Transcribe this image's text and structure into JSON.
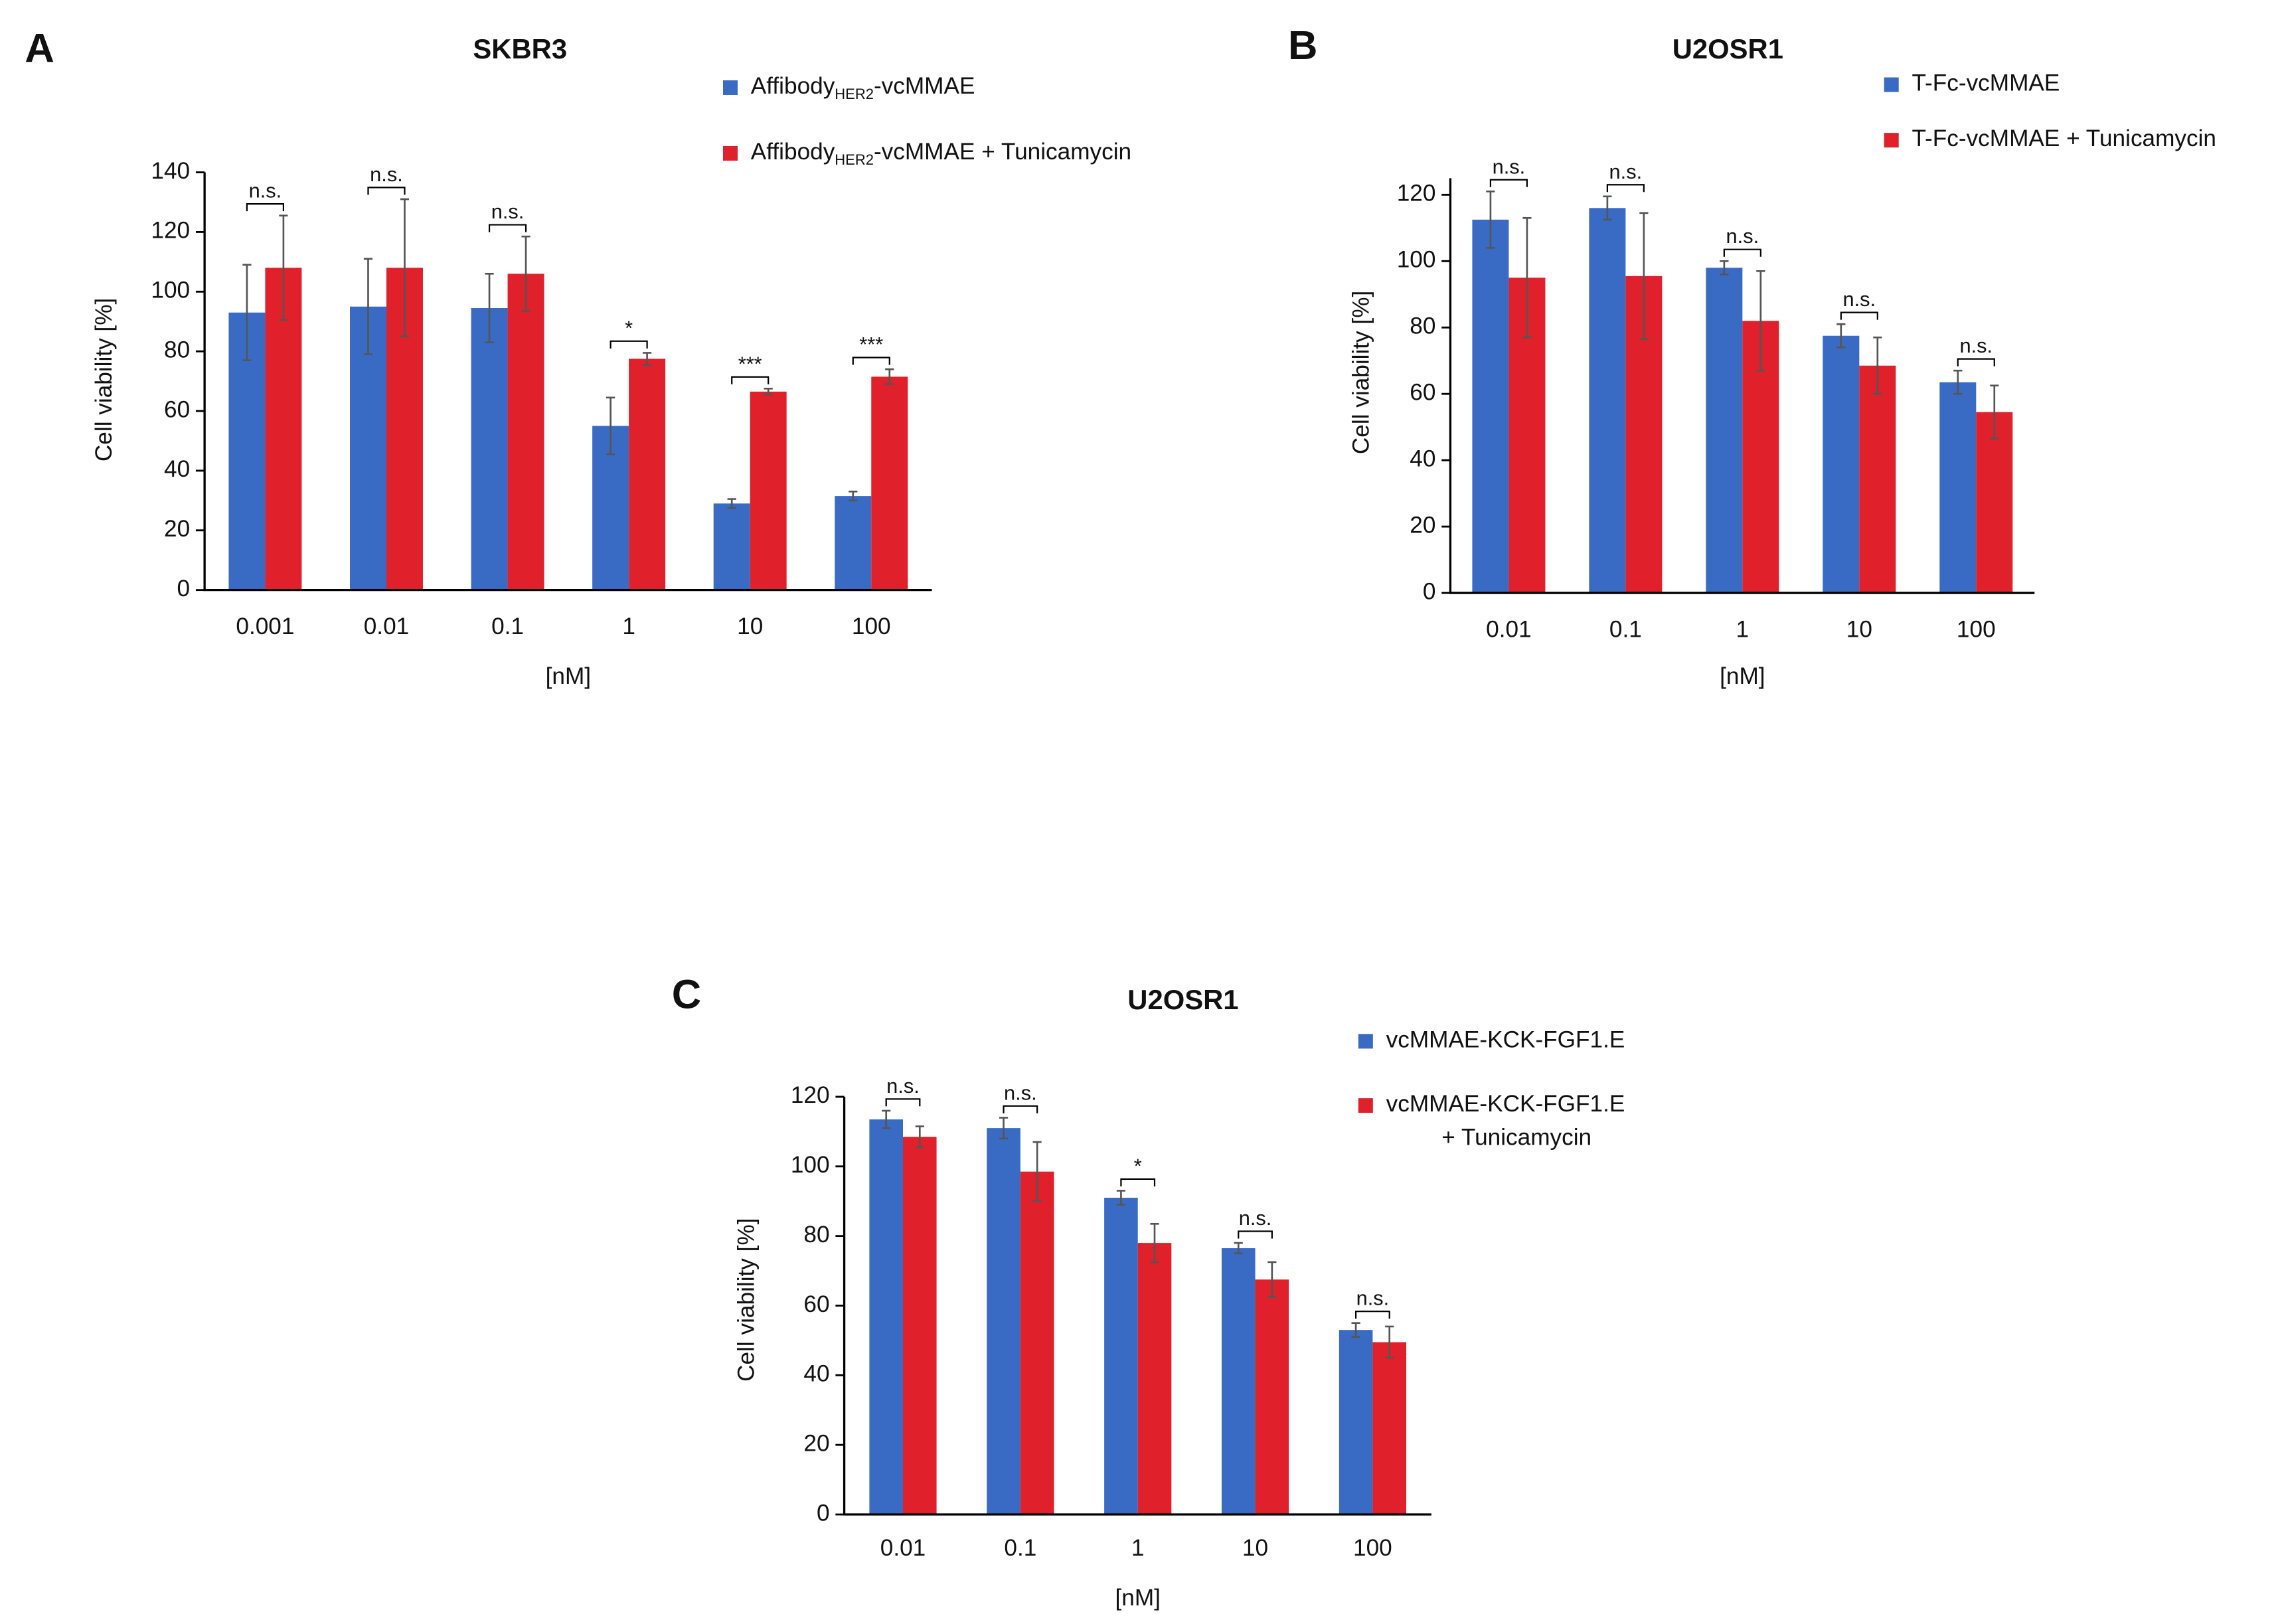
{
  "chart_data": [
    {
      "type": "bar",
      "label": "A",
      "title": "SKBR3",
      "x_label": "[nM]",
      "y_label": "Cell viability [%]",
      "categories": [
        "0.001",
        "0.01",
        "0.1",
        "1",
        "10",
        "100"
      ],
      "series": [
        {
          "name": "AffibodyHER2-vcMMAE",
          "name_subscript": "HER2",
          "color": "#3a6bc4",
          "values": [
            93,
            95,
            94.5,
            55,
            29,
            31.5
          ],
          "errors": [
            16,
            16,
            11.5,
            9.5,
            1.5,
            1.5
          ]
        },
        {
          "name": "AffibodyHER2-vcMMAE + Tunicamycin",
          "name_subscript": "HER2",
          "color": "#e0202a",
          "values": [
            108,
            108,
            106,
            77.5,
            66.5,
            71.5
          ],
          "errors": [
            17.5,
            23,
            12.5,
            2,
            1,
            2.5
          ]
        }
      ],
      "significance": [
        "n.s.",
        "n.s.",
        "n.s.",
        "*",
        "***",
        "***"
      ],
      "ylim": [
        0,
        140
      ],
      "yticks": [
        0,
        20,
        40,
        60,
        80,
        100,
        120,
        140
      ]
    },
    {
      "type": "bar",
      "label": "B",
      "title": "U2OSR1",
      "x_label": "[nM]",
      "y_label": "Cell viability [%]",
      "categories": [
        "0.01",
        "0.1",
        "1",
        "10",
        "100"
      ],
      "series": [
        {
          "name": "T-Fc-vcMMAE",
          "color": "#3a6bc4",
          "values": [
            112.5,
            116,
            98,
            77.5,
            63.5
          ],
          "errors": [
            8.5,
            3.5,
            2,
            3.5,
            3.5
          ]
        },
        {
          "name": "T-Fc-vcMMAE + Tunicamycin",
          "color": "#e0202a",
          "values": [
            95,
            95.5,
            82,
            68.5,
            54.5
          ],
          "errors": [
            18,
            19,
            15,
            8.5,
            8
          ]
        }
      ],
      "significance": [
        "n.s.",
        "n.s.",
        "n.s.",
        "n.s.",
        "n.s."
      ],
      "ylim": [
        0,
        125
      ],
      "yticks": [
        0,
        20,
        40,
        60,
        80,
        100,
        120
      ]
    },
    {
      "type": "bar",
      "label": "C",
      "title": "U2OSR1",
      "x_label": "[nM]",
      "y_label": "Cell viability [%]",
      "categories": [
        "0.01",
        "0.1",
        "1",
        "10",
        "100"
      ],
      "series": [
        {
          "name": "vcMMAE-KCK-FGF1.E",
          "color": "#3a6bc4",
          "values": [
            113.5,
            111,
            91,
            76.5,
            53
          ],
          "errors": [
            2.5,
            3,
            2,
            1.5,
            2
          ]
        },
        {
          "name": "vcMMAE-KCK-FGF1.E\n+ Tunicamycin",
          "color": "#e0202a",
          "values": [
            108.5,
            98.5,
            78,
            67.5,
            49.5
          ],
          "errors": [
            3,
            8.5,
            5.5,
            5,
            4.5
          ]
        }
      ],
      "significance": [
        "n.s.",
        "n.s.",
        "*",
        "n.s.",
        "n.s."
      ],
      "ylim": [
        0,
        120
      ],
      "yticks": [
        0,
        20,
        40,
        60,
        80,
        100,
        120
      ]
    }
  ]
}
